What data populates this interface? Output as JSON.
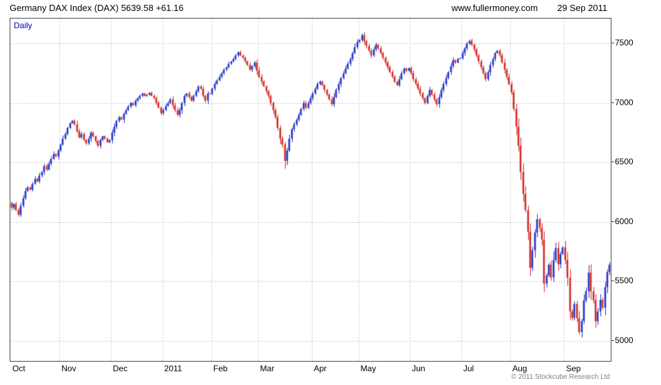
{
  "header": {
    "title": "Germany DAX Index (DAX) 5639.58 +61.16",
    "website": "www.fullermoney.com",
    "date": "29 Sep 2011"
  },
  "chart": {
    "interval_label": "Daily",
    "copyright": "© 2011 Stockcube Research Ltd"
  },
  "chart_data": {
    "type": "candlestick",
    "title": "Germany DAX Index (DAX)",
    "interval": "Daily",
    "last_close": 5639.58,
    "change": 61.16,
    "y_ticks": [
      7500,
      7000,
      6500,
      6000,
      5500,
      5000
    ],
    "y_range": [
      4830,
      7710
    ],
    "x_tick_labels": [
      "Oct",
      "Nov",
      "Dec",
      "2011",
      "Feb",
      "Mar",
      "Apr",
      "May",
      "Jun",
      "Jul",
      "Aug",
      "Sep"
    ],
    "month_start_indices": [
      0,
      21,
      43,
      65,
      86,
      106,
      129,
      149,
      171,
      193,
      214,
      237
    ],
    "first_open": 6160,
    "closes": [
      6120,
      6150,
      6100,
      6060,
      6135,
      6200,
      6260,
      6290,
      6270,
      6320,
      6360,
      6340,
      6390,
      6420,
      6470,
      6440,
      6490,
      6530,
      6570,
      6550,
      6601,
      6650,
      6700,
      6740,
      6790,
      6830,
      6850,
      6820,
      6760,
      6710,
      6740,
      6690,
      6660,
      6700,
      6750,
      6720,
      6680,
      6640,
      6690,
      6720,
      6700,
      6670,
      6688,
      6750,
      6800,
      6850,
      6880,
      6860,
      6910,
      6940,
      6970,
      7000,
      6980,
      7020,
      7040,
      7060,
      7080,
      7060,
      7070,
      7085,
      7060,
      7040,
      7000,
      6960,
      6914,
      6940,
      6975,
      7000,
      7030,
      6980,
      6940,
      6900,
      6940,
      7000,
      7060,
      7080,
      7050,
      7020,
      7060,
      7100,
      7140,
      7120,
      7060,
      7020,
      7080,
      7077,
      7120,
      7160,
      7190,
      7220,
      7250,
      7280,
      7300,
      7330,
      7350,
      7370,
      7400,
      7427,
      7400,
      7380,
      7350,
      7320,
      7280,
      7310,
      7340,
      7272,
      7220,
      7180,
      7140,
      7100,
      7060,
      7000,
      6940,
      6880,
      6790,
      6700,
      6650,
      6513,
      6600,
      6700,
      6780,
      6820,
      6860,
      6900,
      6950,
      7000,
      6960,
      7000,
      7041,
      7080,
      7120,
      7160,
      7180,
      7150,
      7110,
      7070,
      7030,
      6990,
      7050,
      7110,
      7160,
      7210,
      7250,
      7290,
      7330,
      7370,
      7420,
      7470,
      7514,
      7530,
      7570,
      7520,
      7480,
      7440,
      7400,
      7450,
      7490,
      7460,
      7420,
      7380,
      7340,
      7300,
      7260,
      7220,
      7180,
      7150,
      7200,
      7250,
      7290,
      7270,
      7293,
      7250,
      7200,
      7160,
      7120,
      7080,
      7040,
      7000,
      7060,
      7110,
      7070,
      7030,
      6990,
      7050,
      7110,
      7160,
      7210,
      7260,
      7310,
      7360,
      7340,
      7370,
      7376,
      7420,
      7460,
      7500,
      7523,
      7490,
      7450,
      7400,
      7350,
      7300,
      7250,
      7200,
      7260,
      7320,
      7370,
      7420,
      7440,
      7400,
      7340,
      7280,
      7220,
      7158,
      7090,
      6950,
      6800,
      6640,
      6420,
      6236,
      6100,
      5917,
      5613,
      5760,
      5910,
      6022,
      5950,
      5850,
      5480,
      5550,
      5640,
      5532,
      5680,
      5780,
      5643,
      5730,
      5785,
      5680,
      5530,
      5246,
      5193,
      5310,
      5190,
      5072,
      5166,
      5340,
      5416,
      5573,
      5415,
      5340,
      5164,
      5246,
      5345,
      5278,
      5450,
      5578,
      5639.58
    ],
    "colors": {
      "up": "#2133c7",
      "down": "#cf2a27",
      "grid": "#c6c6c6",
      "border": "#4a4a4a",
      "text": "#000000",
      "interval_label": "#0000bb",
      "copyright": "#808080"
    }
  }
}
